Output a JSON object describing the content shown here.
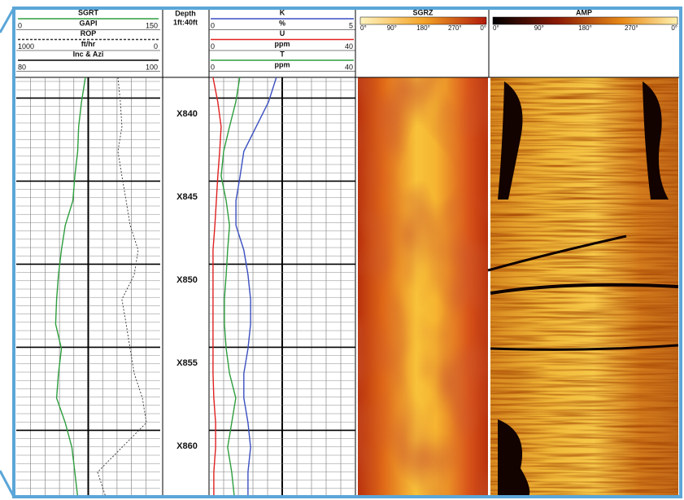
{
  "tracks": [
    {
      "curves": [
        {
          "name": "SGRT",
          "unit": "GAPI",
          "scale": [
            0,
            150
          ],
          "color": "#2e9e3e",
          "dash": false,
          "values": [
            72,
            68,
            65,
            64,
            61,
            59,
            51,
            47,
            44,
            42,
            41,
            47,
            44,
            42,
            51,
            58,
            61,
            64
          ]
        },
        {
          "name": "ROP",
          "unit": "ft/hr",
          "scale": [
            1000,
            0
          ],
          "color": "#333333",
          "dash": true,
          "values": [
            294,
            277,
            266,
            294,
            266,
            237,
            209,
            153,
            181,
            266,
            237,
            209,
            181,
            124,
            96,
            266,
            435,
            379
          ]
        },
        {
          "name": "Inc & Azi",
          "scale": [
            80,
            100
          ],
          "color": "#000000",
          "dash": false,
          "values": [
            90,
            90
          ]
        }
      ]
    },
    {
      "title": "Depth",
      "scale_label": "1ft:40ft",
      "depth_labels": [
        "X840",
        "X845",
        "X850",
        "X855",
        "X860"
      ]
    },
    {
      "curves": [
        {
          "name": "K",
          "unit": "%",
          "scale": [
            0,
            5
          ],
          "color": "#3a4fc0",
          "dash": false,
          "values": [
            2.3,
            2.03,
            1.61,
            1.19,
            1.06,
            0.92,
            0.92,
            1.19,
            1.33,
            1.42,
            1.42,
            1.33,
            1.19,
            1.19,
            1.33,
            1.42,
            1.33,
            1.33
          ]
        },
        {
          "name": "U",
          "unit": "ppm",
          "scale": [
            0,
            40
          ],
          "color": "#e02020",
          "dash": false,
          "values": [
            1.1,
            2.4,
            3.3,
            2.9,
            2.4,
            2.0,
            1.6,
            1.1,
            1.1,
            1.1,
            1.1,
            1.1,
            1.1,
            1.3,
            1.8,
            1.8,
            1.3,
            1.3
          ]
        },
        {
          "name": "T",
          "unit": "ppm",
          "scale": [
            0,
            40
          ],
          "color": "#2e9e3e",
          "dash": false,
          "values": [
            8.4,
            7.3,
            5.6,
            4.0,
            3.3,
            4.7,
            5.6,
            5.1,
            4.7,
            4.2,
            4.2,
            4.7,
            5.6,
            7.3,
            6.2,
            5.1,
            6.2,
            6.9
          ]
        }
      ]
    },
    {
      "title": "SGRZ",
      "azimuth_labels": [
        "0°",
        "90°",
        "180°",
        "270°",
        "0°"
      ]
    },
    {
      "title": "AMP",
      "azimuth_labels": [
        "0°",
        "90°",
        "180°",
        "270°",
        "0°"
      ]
    }
  ]
}
